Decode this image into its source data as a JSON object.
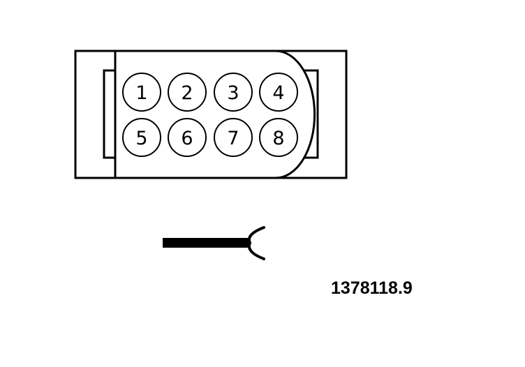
{
  "connector": {
    "pins": [
      {
        "number": "1"
      },
      {
        "number": "2"
      },
      {
        "number": "3"
      },
      {
        "number": "4"
      },
      {
        "number": "5"
      },
      {
        "number": "6"
      },
      {
        "number": "7"
      },
      {
        "number": "8"
      }
    ]
  },
  "reference_number": "1378118.9",
  "colors": {
    "line": "#000000",
    "background": "#ffffff"
  }
}
